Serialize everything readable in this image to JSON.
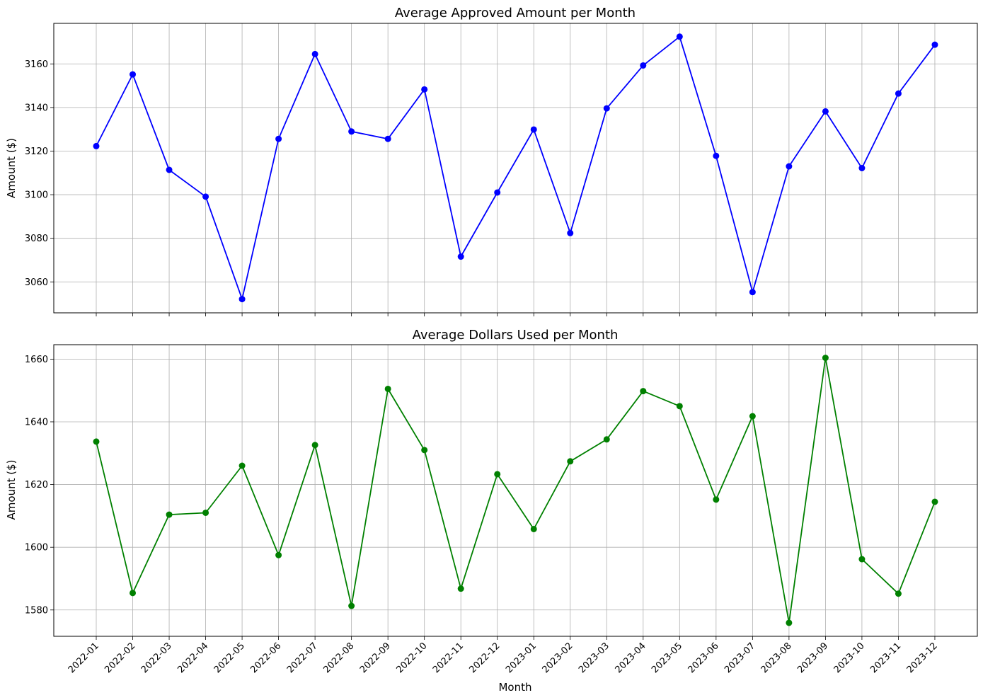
{
  "chart_data": [
    {
      "type": "line",
      "title": "Average Approved Amount per Month",
      "xlabel": "",
      "ylabel": "Amount ($)",
      "color": "#0000ff",
      "marker": "circle",
      "grid": true,
      "ylim": [
        3045.8,
        3178.6
      ],
      "yticks": [
        3060,
        3080,
        3100,
        3120,
        3140,
        3160
      ],
      "categories": [
        "2022-01",
        "2022-02",
        "2022-03",
        "2022-04",
        "2022-05",
        "2022-06",
        "2022-07",
        "2022-08",
        "2022-09",
        "2022-10",
        "2022-11",
        "2022-12",
        "2023-01",
        "2023-02",
        "2023-03",
        "2023-04",
        "2023-05",
        "2023-06",
        "2023-07",
        "2023-08",
        "2023-09",
        "2023-10",
        "2023-11",
        "2023-12"
      ],
      "values": [
        3122.3,
        3155.2,
        3111.4,
        3099.1,
        3052.1,
        3125.6,
        3164.5,
        3129.0,
        3125.6,
        3148.3,
        3071.6,
        3101.0,
        3129.9,
        3082.4,
        3139.6,
        3159.3,
        3172.5,
        3117.8,
        3055.3,
        3113.0,
        3138.2,
        3112.2,
        3146.4,
        3168.8
      ]
    },
    {
      "type": "line",
      "title": "Average Dollars Used per Month",
      "xlabel": "Month",
      "ylabel": "Amount ($)",
      "color": "#008000",
      "marker": "circle",
      "grid": true,
      "ylim": [
        1571.6,
        1664.6
      ],
      "yticks": [
        1580,
        1600,
        1620,
        1640,
        1660
      ],
      "categories": [
        "2022-01",
        "2022-02",
        "2022-03",
        "2022-04",
        "2022-05",
        "2022-06",
        "2022-07",
        "2022-08",
        "2022-09",
        "2022-10",
        "2022-11",
        "2022-12",
        "2023-01",
        "2023-02",
        "2023-03",
        "2023-04",
        "2023-05",
        "2023-06",
        "2023-07",
        "2023-08",
        "2023-09",
        "2023-10",
        "2023-11",
        "2023-12"
      ],
      "values": [
        1633.7,
        1585.4,
        1610.4,
        1611.0,
        1626.0,
        1597.5,
        1632.6,
        1581.3,
        1650.5,
        1631.0,
        1586.8,
        1623.3,
        1605.8,
        1627.4,
        1634.4,
        1649.8,
        1645.0,
        1615.2,
        1641.8,
        1575.9,
        1660.4,
        1596.2,
        1585.2,
        1614.5
      ]
    }
  ]
}
